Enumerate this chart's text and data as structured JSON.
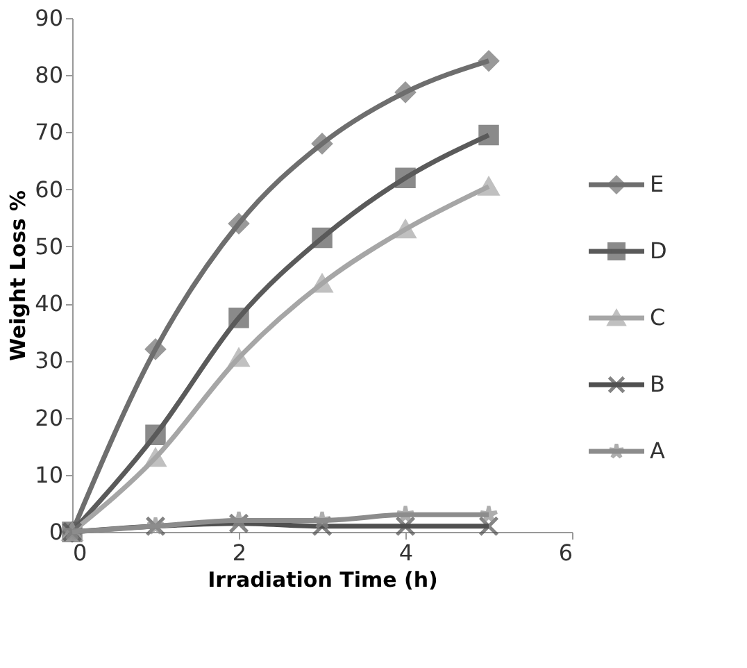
{
  "chart_data": {
    "type": "line",
    "xlabel": "Irradiation Time (h)",
    "ylabel": "Weight Loss %",
    "x": [
      0,
      1,
      2,
      3,
      4,
      5
    ],
    "series": [
      {
        "name": "E",
        "color": "#6e6e6e",
        "marker": "diamond",
        "values": [
          0,
          32,
          54,
          68,
          77,
          82.5
        ]
      },
      {
        "name": "D",
        "color": "#5a5a5a",
        "marker": "square",
        "values": [
          0,
          17,
          37.5,
          51.5,
          62,
          69.5
        ]
      },
      {
        "name": "C",
        "color": "#a6a6a6",
        "marker": "triangle",
        "values": [
          0,
          13,
          30.5,
          43.5,
          53,
          60.5
        ]
      },
      {
        "name": "B",
        "color": "#505050",
        "marker": "cross",
        "values": [
          0,
          1,
          1.5,
          1,
          1,
          1
        ]
      },
      {
        "name": "A",
        "color": "#8c8c8c",
        "marker": "star",
        "values": [
          0,
          1,
          2,
          2,
          3,
          3
        ]
      }
    ],
    "xlim": [
      0,
      6
    ],
    "xticks": [
      0,
      2,
      4,
      6
    ],
    "ylim": [
      0,
      90
    ],
    "yticks": [
      0,
      10,
      20,
      30,
      40,
      50,
      60,
      70,
      80,
      90
    ],
    "grid": false,
    "legend": "right",
    "line_style": "solid"
  }
}
